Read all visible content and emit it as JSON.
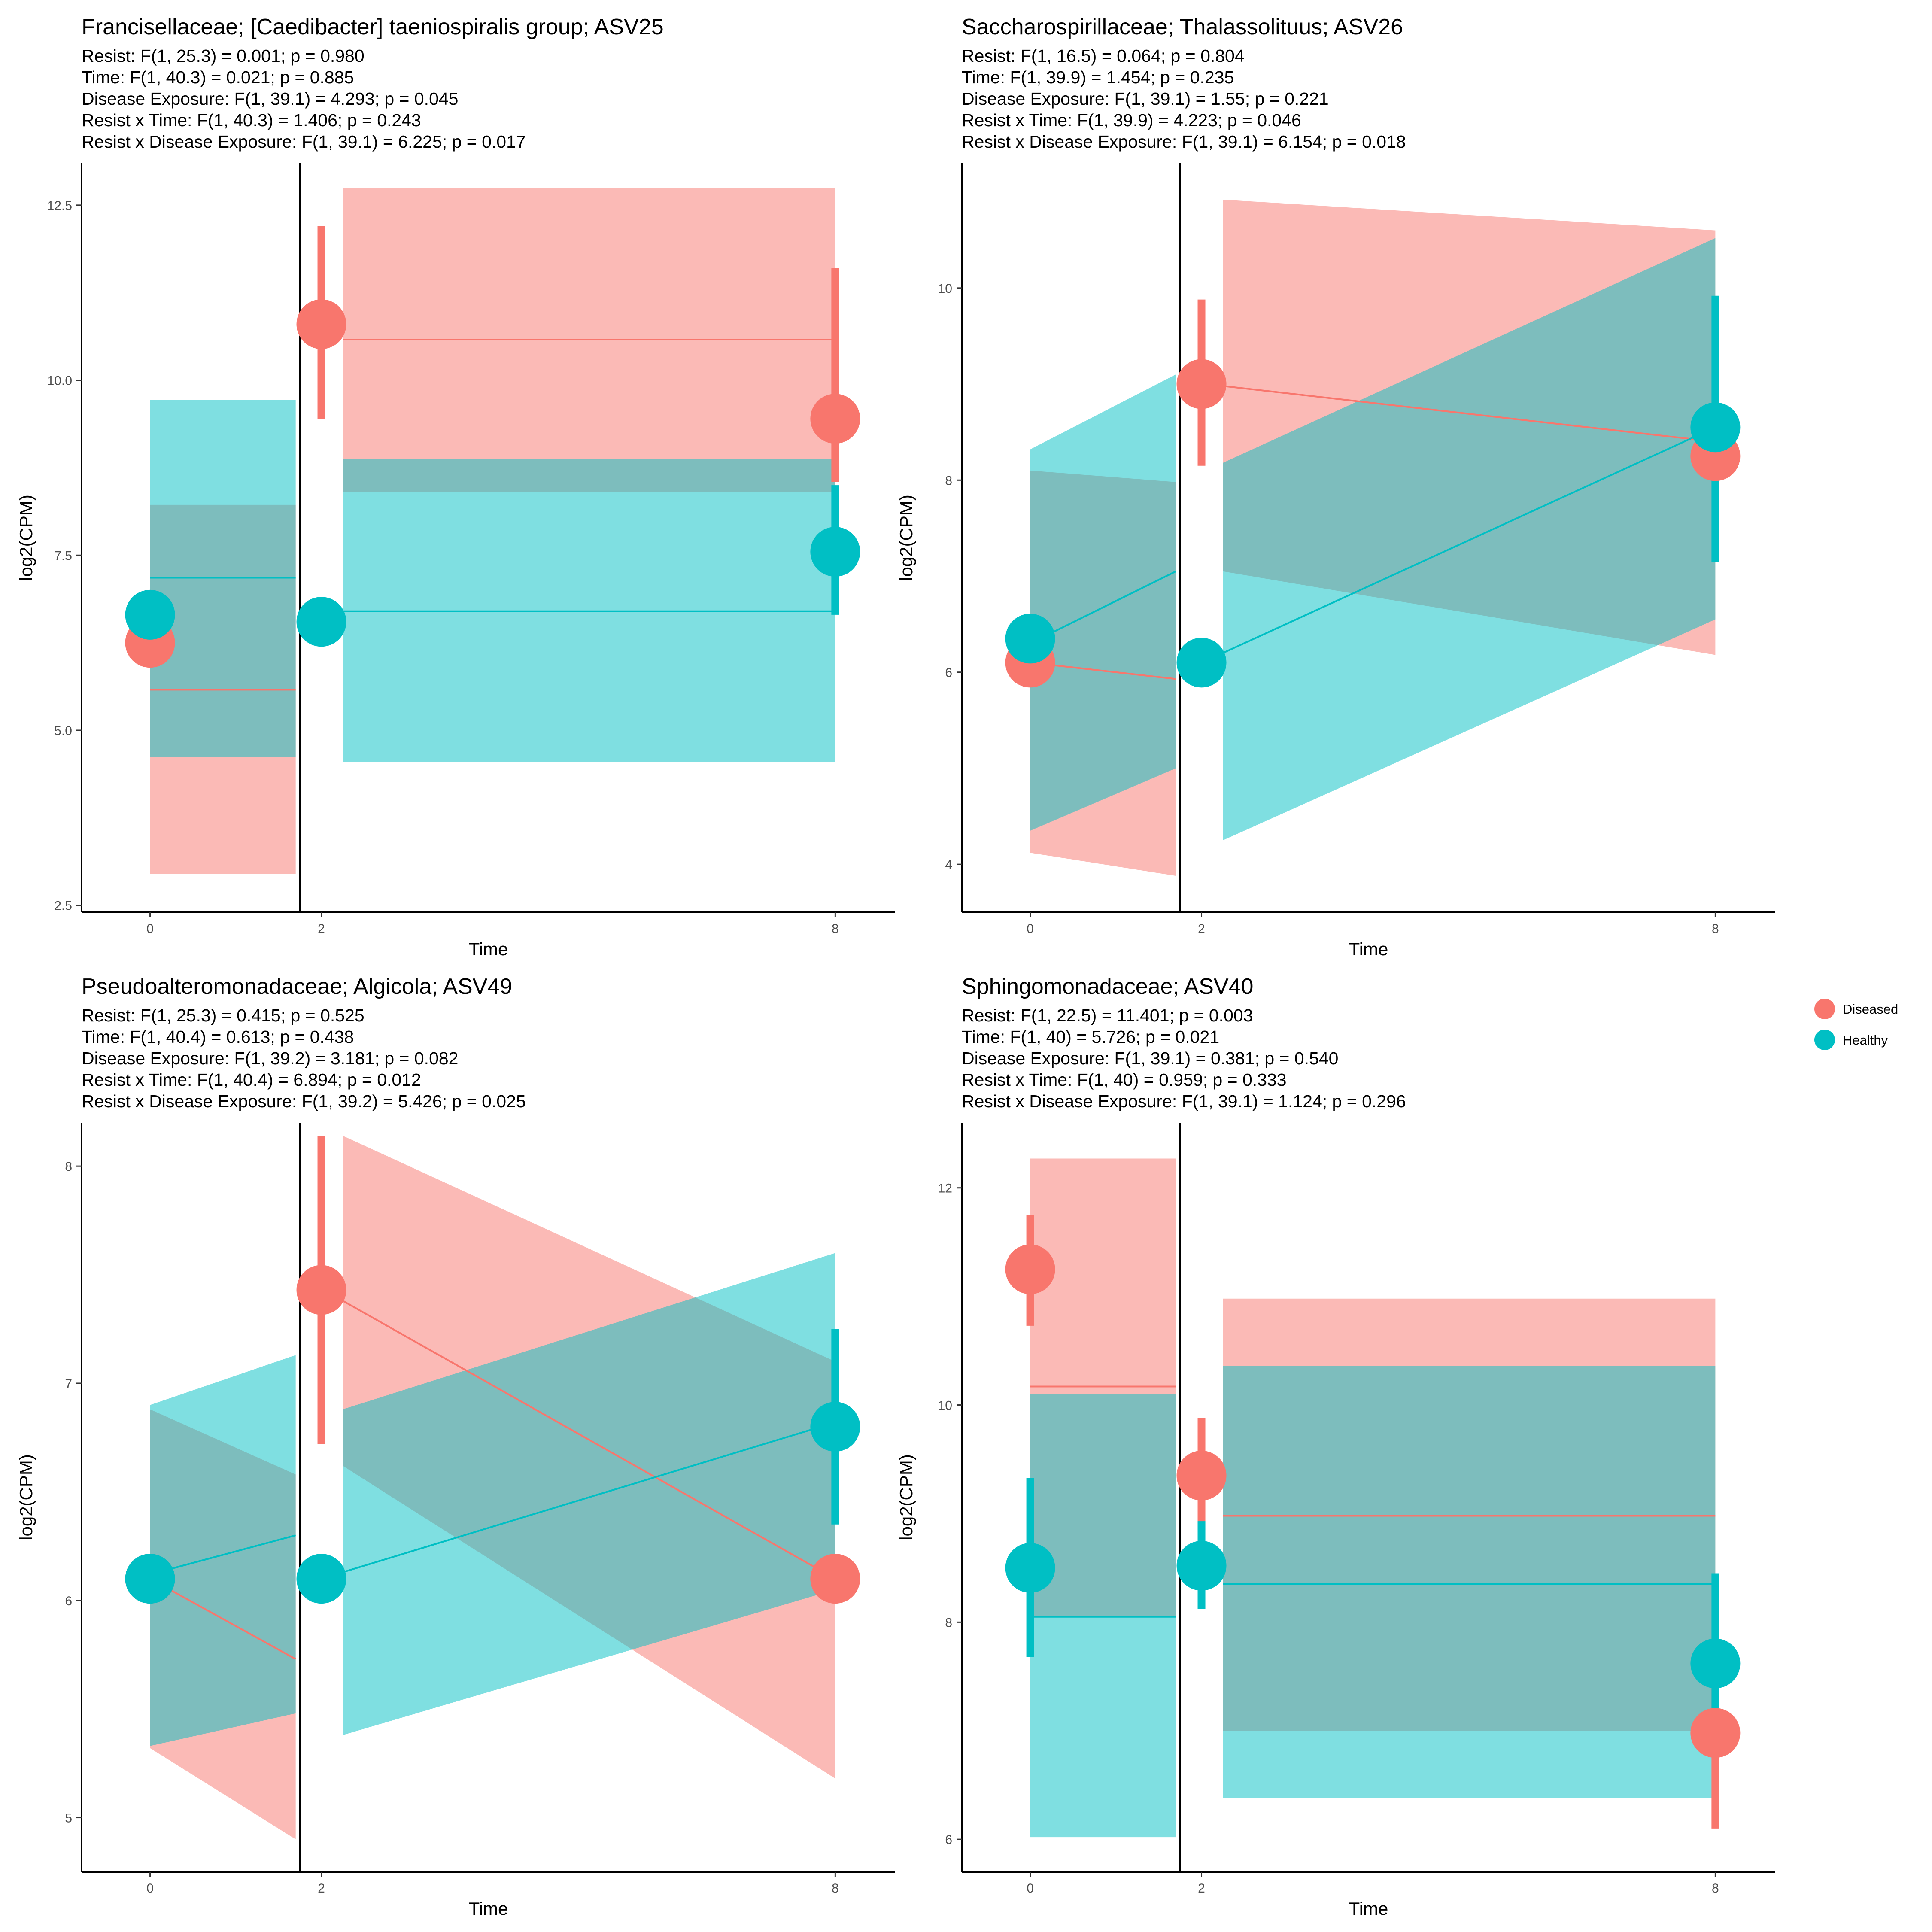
{
  "colors": {
    "Diseased": "#F8766D",
    "Healthy": "#00BFC4",
    "background": "#ffffff",
    "axis": "#000000"
  },
  "legend": {
    "placement": "right",
    "items": [
      {
        "label": "Diseased",
        "color": "#F8766D"
      },
      {
        "label": "Healthy",
        "color": "#00BFC4"
      }
    ]
  },
  "chart_data": [
    {
      "type": "line",
      "title": "Francisellaceae; [Caedibacter] taeniospiralis group; ASV25",
      "subtitle": [
        "Resist: F(1, 25.3) = 0.001; p = 0.980",
        "Time: F(1, 40.3) = 0.021; p = 0.885",
        "Disease Exposure: F(1, 39.1) = 4.293; p = 0.045",
        "Resist x Time: F(1, 40.3) = 1.406; p = 0.243",
        "Resist x Disease Exposure: F(1, 39.1) = 6.225; p = 0.017"
      ],
      "xlabel": "Time",
      "ylabel": "log2(CPM)",
      "xlim": [
        -0.8,
        8.7
      ],
      "ylim": [
        2.4,
        13.1
      ],
      "x_ticks": [
        0,
        2,
        8
      ],
      "x_tick_labels": [
        "0",
        "2",
        "8"
      ],
      "y_ticks": [
        2.5,
        5.0,
        7.5,
        10.0,
        12.5
      ],
      "y_tick_labels": [
        "2.5",
        "5.0",
        "7.5",
        "10.0",
        "12.5"
      ],
      "vline_x": 1.75,
      "grid": false,
      "series": [
        {
          "name": "Diseased",
          "points": [
            {
              "x": 0,
              "y": 6.25,
              "lo": null,
              "hi": null
            },
            {
              "x": 2,
              "y": 10.8,
              "lo": 9.45,
              "hi": 12.2
            },
            {
              "x": 8,
              "y": 9.45,
              "lo": 8.55,
              "hi": 11.6
            }
          ],
          "fit_segments": [
            {
              "x": [
                0,
                1.7
              ],
              "y": [
                5.58,
                5.58
              ],
              "lo": [
                2.95,
                2.95
              ],
              "hi": [
                8.22,
                8.22
              ]
            },
            {
              "x": [
                2.25,
                8
              ],
              "y": [
                10.58,
                10.58
              ],
              "lo": [
                8.4,
                8.4
              ],
              "hi": [
                12.75,
                12.75
              ]
            }
          ]
        },
        {
          "name": "Healthy",
          "points": [
            {
              "x": 0,
              "y": 6.65,
              "lo": null,
              "hi": null
            },
            {
              "x": 2,
              "y": 6.55,
              "lo": null,
              "hi": null
            },
            {
              "x": 8,
              "y": 7.55,
              "lo": 6.65,
              "hi": 8.5
            }
          ],
          "fit_segments": [
            {
              "x": [
                0,
                1.7
              ],
              "y": [
                7.18,
                7.18
              ],
              "lo": [
                4.62,
                4.62
              ],
              "hi": [
                9.72,
                9.72
              ]
            },
            {
              "x": [
                2.25,
                8
              ],
              "y": [
                6.7,
                6.7
              ],
              "lo": [
                4.55,
                4.55
              ],
              "hi": [
                8.88,
                8.88
              ]
            }
          ]
        }
      ]
    },
    {
      "type": "line",
      "title": "Saccharospirillaceae; Thalassolituus; ASV26",
      "subtitle": [
        "Resist: F(1, 16.5) = 0.064; p = 0.804",
        "Time: F(1, 39.9) = 1.454; p = 0.235",
        "Disease Exposure: F(1, 39.1) = 1.55; p = 0.221",
        "Resist x Time: F(1, 39.9) = 4.223; p = 0.046",
        "Resist x Disease Exposure: F(1, 39.1) = 6.154; p = 0.018"
      ],
      "xlabel": "Time",
      "ylabel": "log2(CPM)",
      "xlim": [
        -0.8,
        8.7
      ],
      "ylim": [
        3.5,
        11.3
      ],
      "x_ticks": [
        0,
        2,
        8
      ],
      "x_tick_labels": [
        "0",
        "2",
        "8"
      ],
      "y_ticks": [
        4,
        6,
        8,
        10
      ],
      "y_tick_labels": [
        "4",
        "6",
        "8",
        "10"
      ],
      "vline_x": 1.75,
      "grid": false,
      "series": [
        {
          "name": "Diseased",
          "points": [
            {
              "x": 0,
              "y": 6.1,
              "lo": null,
              "hi": null
            },
            {
              "x": 2,
              "y": 9.0,
              "lo": 8.15,
              "hi": 9.88
            },
            {
              "x": 8,
              "y": 8.25,
              "lo": null,
              "hi": null
            }
          ],
          "fit_segments": [
            {
              "x": [
                0,
                1.7
              ],
              "y": [
                6.1,
                5.93
              ],
              "lo": [
                4.12,
                3.88
              ],
              "hi": [
                8.1,
                7.98
              ]
            },
            {
              "x": [
                2.25,
                8
              ],
              "y": [
                8.98,
                8.4
              ],
              "lo": [
                7.05,
                6.18
              ],
              "hi": [
                10.92,
                10.6
              ]
            }
          ]
        },
        {
          "name": "Healthy",
          "points": [
            {
              "x": 0,
              "y": 6.35,
              "lo": null,
              "hi": null
            },
            {
              "x": 2,
              "y": 6.1,
              "lo": null,
              "hi": null
            },
            {
              "x": 8,
              "y": 8.55,
              "lo": 7.15,
              "hi": 9.92
            }
          ],
          "fit_segments": [
            {
              "x": [
                0,
                1.7
              ],
              "y": [
                6.3,
                7.05
              ],
              "lo": [
                4.35,
                5.0
              ],
              "hi": [
                8.32,
                9.1
              ]
            },
            {
              "x": [
                2.25,
                8
              ],
              "y": [
                6.2,
                8.55
              ],
              "lo": [
                4.25,
                6.55
              ],
              "hi": [
                8.18,
                10.52
              ]
            }
          ]
        }
      ]
    },
    {
      "type": "line",
      "title": "Pseudoalteromonadaceae; Algicola; ASV49",
      "subtitle": [
        "Resist: F(1, 25.3) = 0.415; p = 0.525",
        "Time: F(1, 40.4) = 0.613; p = 0.438",
        "Disease Exposure: F(1, 39.2) = 3.181; p = 0.082",
        "Resist x Time: F(1, 40.4) = 6.894; p = 0.012",
        "Resist x Disease Exposure: F(1, 39.2) = 5.426; p = 0.025"
      ],
      "xlabel": "Time",
      "ylabel": "log2(CPM)",
      "xlim": [
        -0.8,
        8.7
      ],
      "ylim": [
        4.75,
        8.2
      ],
      "x_ticks": [
        0,
        2,
        8
      ],
      "x_tick_labels": [
        "0",
        "2",
        "8"
      ],
      "y_ticks": [
        5,
        6,
        7,
        8
      ],
      "y_tick_labels": [
        "5",
        "6",
        "7",
        "8"
      ],
      "vline_x": 1.75,
      "grid": false,
      "series": [
        {
          "name": "Diseased",
          "points": [
            {
              "x": 0,
              "y": 6.1,
              "lo": null,
              "hi": null
            },
            {
              "x": 2,
              "y": 7.43,
              "lo": 6.72,
              "hi": 8.14
            },
            {
              "x": 8,
              "y": 6.1,
              "lo": null,
              "hi": null
            }
          ],
          "fit_segments": [
            {
              "x": [
                0,
                1.7
              ],
              "y": [
                6.1,
                5.73
              ],
              "lo": [
                5.32,
                4.9
              ],
              "hi": [
                6.88,
                6.58
              ]
            },
            {
              "x": [
                2.25,
                8
              ],
              "y": [
                7.38,
                6.1
              ],
              "lo": [
                6.62,
                5.18
              ],
              "hi": [
                8.14,
                7.1
              ]
            }
          ]
        },
        {
          "name": "Healthy",
          "points": [
            {
              "x": 0,
              "y": 6.1,
              "lo": null,
              "hi": null
            },
            {
              "x": 2,
              "y": 6.1,
              "lo": null,
              "hi": null
            },
            {
              "x": 8,
              "y": 6.8,
              "lo": 6.35,
              "hi": 7.25
            }
          ],
          "fit_segments": [
            {
              "x": [
                0,
                1.7
              ],
              "y": [
                6.12,
                6.3
              ],
              "lo": [
                5.33,
                5.48
              ],
              "hi": [
                6.9,
                7.13
              ]
            },
            {
              "x": [
                2.25,
                8
              ],
              "y": [
                6.13,
                6.82
              ],
              "lo": [
                5.38,
                6.05
              ],
              "hi": [
                6.88,
                7.6
              ]
            }
          ]
        }
      ]
    },
    {
      "type": "line",
      "title": "Sphingomonadaceae; ASV40",
      "subtitle": [
        "Resist: F(1, 22.5) = 11.401; p = 0.003",
        "Time: F(1, 40) = 5.726; p = 0.021",
        "Disease Exposure: F(1, 39.1) = 0.381; p = 0.540",
        "Resist x Time: F(1, 40) = 0.959; p = 0.333",
        "Resist x Disease Exposure: F(1, 39.1) = 1.124; p = 0.296"
      ],
      "xlabel": "Time",
      "ylabel": "log2(CPM)",
      "xlim": [
        -0.8,
        8.7
      ],
      "ylim": [
        5.7,
        12.6
      ],
      "x_ticks": [
        0,
        2,
        8
      ],
      "x_tick_labels": [
        "0",
        "2",
        "8"
      ],
      "y_ticks": [
        6,
        8,
        10,
        12
      ],
      "y_tick_labels": [
        "6",
        "8",
        "10",
        "12"
      ],
      "vline_x": 1.75,
      "grid": false,
      "series": [
        {
          "name": "Diseased",
          "points": [
            {
              "x": 0,
              "y": 11.25,
              "lo": 10.73,
              "hi": 11.75
            },
            {
              "x": 2,
              "y": 9.35,
              "lo": 8.85,
              "hi": 9.88
            },
            {
              "x": 8,
              "y": 6.98,
              "lo": 6.1,
              "hi": 7.85
            }
          ],
          "fit_segments": [
            {
              "x": [
                0,
                1.7
              ],
              "y": [
                10.17,
                10.17
              ],
              "lo": [
                8.05,
                8.05
              ],
              "hi": [
                12.27,
                12.27
              ]
            },
            {
              "x": [
                2.25,
                8
              ],
              "y": [
                8.98,
                8.98
              ],
              "lo": [
                7.0,
                7.0
              ],
              "hi": [
                10.98,
                10.98
              ]
            }
          ]
        },
        {
          "name": "Healthy",
          "points": [
            {
              "x": 0,
              "y": 8.5,
              "lo": 7.68,
              "hi": 9.33
            },
            {
              "x": 2,
              "y": 8.52,
              "lo": 8.12,
              "hi": 8.93
            },
            {
              "x": 8,
              "y": 7.62,
              "lo": 6.85,
              "hi": 8.45
            }
          ],
          "fit_segments": [
            {
              "x": [
                0,
                1.7
              ],
              "y": [
                8.05,
                8.05
              ],
              "lo": [
                6.02,
                6.02
              ],
              "hi": [
                10.1,
                10.1
              ]
            },
            {
              "x": [
                2.25,
                8
              ],
              "y": [
                8.35,
                8.35
              ],
              "lo": [
                6.38,
                6.38
              ],
              "hi": [
                10.36,
                10.36
              ]
            }
          ]
        }
      ]
    }
  ]
}
